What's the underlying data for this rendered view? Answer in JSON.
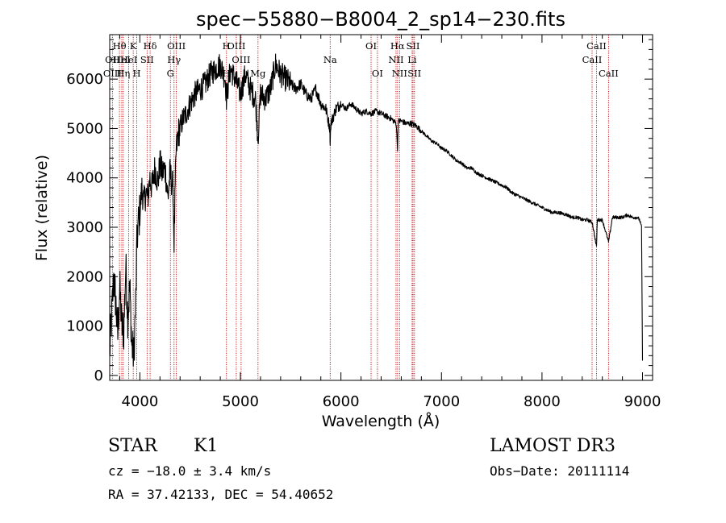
{
  "chart_data": {
    "type": "line",
    "title": "spec−55880−B8004_2_sp14−230.fits",
    "xlabel": "Wavelength (Å)",
    "ylabel": "Flux (relative)",
    "xlim": [
      3700,
      9100
    ],
    "ylim": [
      -100,
      6900
    ],
    "xticks": [
      4000,
      5000,
      6000,
      7000,
      8000,
      9000
    ],
    "xtick_labels": [
      "4000",
      "5000",
      "6000",
      "7000",
      "8000",
      "9000"
    ],
    "yticks": [
      0,
      1000,
      2000,
      3000,
      4000,
      5000,
      6000
    ],
    "ytick_labels": [
      "0",
      "1000",
      "2000",
      "3000",
      "4000",
      "5000",
      "6000"
    ],
    "grid": false,
    "spectrum": {
      "name": "flux",
      "x": [
        3700,
        3720,
        3740,
        3760,
        3780,
        3800,
        3820,
        3840,
        3860,
        3880,
        3900,
        3920,
        3940,
        3960,
        3970,
        3980,
        4000,
        4020,
        4040,
        4060,
        4080,
        4100,
        4120,
        4150,
        4180,
        4200,
        4220,
        4250,
        4280,
        4300,
        4330,
        4340,
        4360,
        4380,
        4400,
        4430,
        4460,
        4500,
        4550,
        4600,
        4650,
        4700,
        4750,
        4800,
        4850,
        4861,
        4900,
        4950,
        5000,
        5050,
        5100,
        5150,
        5175,
        5200,
        5250,
        5300,
        5350,
        5400,
        5450,
        5500,
        5550,
        5600,
        5650,
        5700,
        5750,
        5800,
        5850,
        5890,
        5893,
        5900,
        5950,
        6000,
        6050,
        6100,
        6150,
        6200,
        6250,
        6300,
        6350,
        6400,
        6450,
        6500,
        6550,
        6563,
        6570,
        6600,
        6650,
        6700,
        6750,
        6800,
        6850,
        6900,
        6950,
        7000,
        7050,
        7100,
        7150,
        7200,
        7250,
        7300,
        7350,
        7400,
        7450,
        7500,
        7550,
        7600,
        7650,
        7700,
        7750,
        7800,
        7850,
        7900,
        7950,
        8000,
        8050,
        8100,
        8150,
        8200,
        8250,
        8300,
        8350,
        8400,
        8450,
        8500,
        8542,
        8550,
        8600,
        8662,
        8700,
        8750,
        8800,
        8850,
        8900,
        8950,
        8970,
        8990,
        9000
      ],
      "y": [
        500,
        1200,
        2000,
        1500,
        800,
        1800,
        1000,
        900,
        2200,
        1200,
        1800,
        600,
        400,
        1600,
        2600,
        3000,
        3300,
        3800,
        3500,
        3700,
        3600,
        4000,
        3800,
        4200,
        3900,
        4300,
        4100,
        4200,
        3600,
        4100,
        3800,
        2700,
        4500,
        4900,
        5000,
        5200,
        5300,
        5500,
        5700,
        5800,
        5900,
        6100,
        6200,
        6300,
        6000,
        5600,
        6200,
        6000,
        5700,
        6100,
        5800,
        5600,
        4800,
        5700,
        5600,
        5800,
        6300,
        6100,
        6000,
        5900,
        5800,
        5900,
        5700,
        5600,
        5800,
        5500,
        5400,
        5000,
        4700,
        5100,
        5400,
        5500,
        5400,
        5500,
        5400,
        5300,
        5350,
        5300,
        5350,
        5300,
        5250,
        5200,
        5100,
        4600,
        5150,
        5150,
        5100,
        5100,
        5050,
        4950,
        4850,
        4750,
        4700,
        4600,
        4550,
        4450,
        4350,
        4300,
        4200,
        4200,
        4100,
        4050,
        4000,
        3950,
        3900,
        3850,
        3800,
        3700,
        3650,
        3600,
        3550,
        3500,
        3450,
        3400,
        3350,
        3300,
        3300,
        3280,
        3250,
        3200,
        3200,
        3150,
        3150,
        3100,
        2600,
        3150,
        3150,
        2700,
        3200,
        3200,
        3200,
        3250,
        3200,
        3200,
        3150,
        3000,
        300
      ]
    },
    "lines": [
      {
        "label": "Hθ",
        "x": 3797,
        "row": 1
      },
      {
        "label": "OII",
        "x": 3727,
        "row": 2
      },
      {
        "label": "OIII",
        "x": 3727,
        "row": 3
      },
      {
        "label": "HeI",
        "x": 3820,
        "row": 2
      },
      {
        "label": "Hη",
        "x": 3835,
        "row": 3
      },
      {
        "label": "K",
        "x": 3934,
        "row": 1
      },
      {
        "label": "HeI",
        "x": 3889,
        "row": 2
      },
      {
        "label": "H",
        "x": 3969,
        "row": 3
      },
      {
        "label": "SII",
        "x": 4072,
        "row": 2
      },
      {
        "label": "Hδ",
        "x": 4102,
        "row": 1
      },
      {
        "label": "OIII",
        "x": 4363,
        "row": 1
      },
      {
        "label": "Hγ",
        "x": 4340,
        "row": 2
      },
      {
        "label": "G",
        "x": 4304,
        "row": 3
      },
      {
        "label": "H",
        "x": 4861,
        "row": 1
      },
      {
        "label": "H",
        "x": 4861,
        "row": 3
      },
      {
        "label": "OIII",
        "x": 4959,
        "row": 1
      },
      {
        "label": "OIII",
        "x": 5007,
        "row": 2
      },
      {
        "label": "Mg",
        "x": 5175,
        "row": 3
      },
      {
        "label": "Na",
        "x": 5893,
        "row": 2
      },
      {
        "label": "OI",
        "x": 6300,
        "row": 1
      },
      {
        "label": "OI",
        "x": 6363,
        "row": 3
      },
      {
        "label": "Hα",
        "x": 6563,
        "row": 1
      },
      {
        "label": "NII",
        "x": 6548,
        "row": 2
      },
      {
        "label": "NII",
        "x": 6583,
        "row": 3
      },
      {
        "label": "SII",
        "x": 6717,
        "row": 1
      },
      {
        "label": "Li",
        "x": 6708,
        "row": 2
      },
      {
        "label": "SII",
        "x": 6731,
        "row": 3
      },
      {
        "label": "CaII",
        "x": 8542,
        "row": 1
      },
      {
        "label": "CaII",
        "x": 8498,
        "row": 2
      },
      {
        "label": "CaII",
        "x": 8662,
        "row": 3
      }
    ]
  },
  "info": {
    "object_class": "STAR",
    "subclass": "K1",
    "survey": "LAMOST DR3",
    "cz": "cz = −18.0 ± 3.4 km/s",
    "obs_date": "Obs−Date: 20111114",
    "coords": "RA =  37.42133, DEC =  54.40652"
  }
}
